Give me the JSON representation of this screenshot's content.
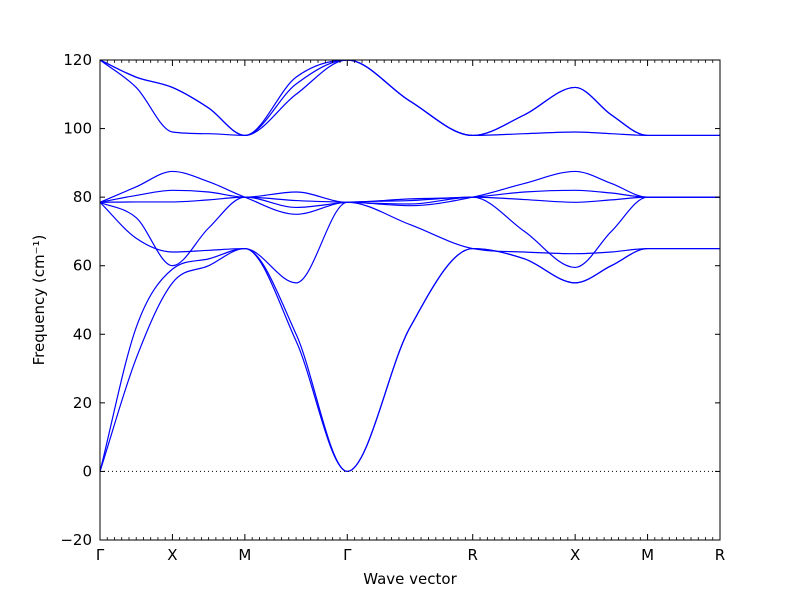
{
  "chart_data": {
    "type": "line",
    "title": "",
    "xlabel": "Wave vector",
    "ylabel": "Frequency (cm⁻¹)",
    "ylim": [
      -20,
      120
    ],
    "y_ticks": [
      -20,
      0,
      20,
      40,
      60,
      80,
      100,
      120
    ],
    "high_symmetry_points": [
      {
        "label": "Γ",
        "position": 0.0
      },
      {
        "label": "X",
        "position": 0.5
      },
      {
        "label": "M",
        "position": 1.0
      },
      {
        "label": "Γ",
        "position": 1.7071
      },
      {
        "label": "R",
        "position": 2.5731
      },
      {
        "label": "X",
        "position": 3.2802
      },
      {
        "label": "M",
        "position": 3.7802
      },
      {
        "label": "R",
        "position": 4.2802
      }
    ],
    "reference_line": {
      "y": 0,
      "style": "dotted"
    },
    "line_color": "#0000ff",
    "band_points": {
      "x": [
        0.0,
        0.25,
        0.5,
        0.75,
        1.0,
        1.354,
        1.7071,
        2.14,
        2.5731,
        2.93,
        3.2802,
        3.53,
        3.7802,
        4.03,
        4.2802
      ],
      "bands": [
        [
          0,
          33,
          55,
          60,
          65,
          40,
          0,
          42,
          65,
          62,
          55,
          60,
          65,
          65,
          65
        ],
        [
          0,
          42,
          59,
          62,
          65,
          38,
          0,
          42,
          65,
          62,
          55,
          60,
          65,
          65,
          65
        ],
        [
          78.5,
          68,
          64,
          64.5,
          65,
          55,
          78.5,
          72,
          65,
          64,
          63.5,
          64,
          65,
          65,
          65
        ],
        [
          78.5,
          74,
          60,
          71,
          80,
          77,
          78.5,
          79,
          80,
          70,
          59.5,
          70,
          80,
          80,
          80
        ],
        [
          78.5,
          78.6,
          78.6,
          79.2,
          80,
          79,
          78.5,
          78,
          80,
          79.3,
          78.5,
          79.2,
          80,
          80,
          80
        ],
        [
          78.5,
          80.5,
          82,
          81.5,
          80,
          81.5,
          78.5,
          79.5,
          80,
          81.5,
          82,
          81.2,
          80,
          80,
          80
        ],
        [
          78.5,
          83,
          87.5,
          84.5,
          80,
          75,
          78.5,
          77.5,
          80,
          84,
          87.5,
          84,
          80,
          80,
          80
        ],
        [
          120,
          112,
          99,
          98.5,
          98,
          110,
          120,
          108,
          98,
          98.5,
          99,
          98.5,
          98,
          98,
          98
        ],
        [
          120,
          115,
          112,
          106,
          98,
          115,
          120,
          108,
          98,
          104,
          112,
          104,
          98,
          98,
          98
        ],
        [
          120,
          115,
          112,
          106,
          98,
          113,
          120,
          108,
          98,
          104,
          112,
          104,
          98,
          98,
          98
        ]
      ]
    }
  }
}
